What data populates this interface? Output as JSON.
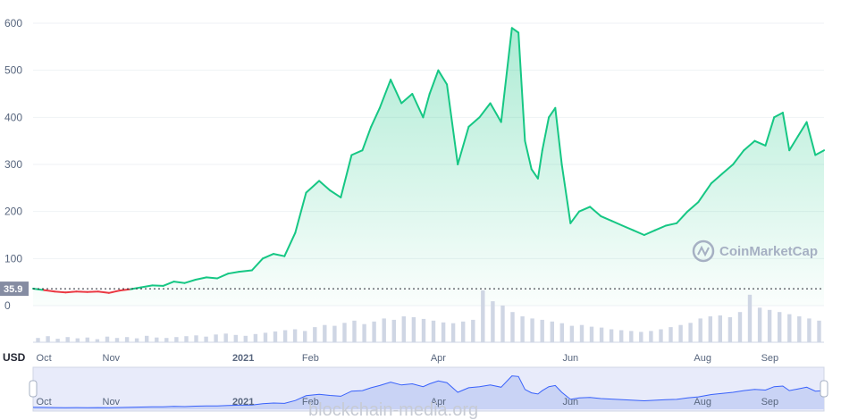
{
  "chart_data": {
    "type": "area",
    "unit_label": "USD",
    "yticks": [
      0,
      100,
      200,
      300,
      400,
      500,
      600
    ],
    "ylim": [
      0,
      620
    ],
    "baseline_label": "35.9",
    "baseline_value": 35.9,
    "x_start": "2020-09-26",
    "x_end": "2021-09-26",
    "x_ticks": [
      {
        "label": "Oct",
        "date": "2020-10-01",
        "year": false
      },
      {
        "label": "Nov",
        "date": "2020-11-01",
        "year": false
      },
      {
        "label": "2021",
        "date": "2021-01-01",
        "year": true
      },
      {
        "label": "Feb",
        "date": "2021-02-01",
        "year": false
      },
      {
        "label": "Apr",
        "date": "2021-04-01",
        "year": false
      },
      {
        "label": "Jun",
        "date": "2021-06-01",
        "year": false
      },
      {
        "label": "Aug",
        "date": "2021-08-01",
        "year": false
      },
      {
        "label": "Sep",
        "date": "2021-09-01",
        "year": false
      }
    ],
    "series": [
      {
        "color_up": "#16c784",
        "color_down": "#ea3943",
        "x": [
          "2020-09-26",
          "2020-10-01",
          "2020-10-06",
          "2020-10-11",
          "2020-10-16",
          "2020-10-21",
          "2020-10-26",
          "2020-10-31",
          "2020-11-05",
          "2020-11-10",
          "2020-11-15",
          "2020-11-20",
          "2020-11-25",
          "2020-11-30",
          "2020-12-05",
          "2020-12-10",
          "2020-12-15",
          "2020-12-20",
          "2020-12-25",
          "2020-12-30",
          "2021-01-05",
          "2021-01-10",
          "2021-01-15",
          "2021-01-20",
          "2021-01-25",
          "2021-01-30",
          "2021-02-05",
          "2021-02-10",
          "2021-02-15",
          "2021-02-20",
          "2021-02-25",
          "2021-03-01",
          "2021-03-05",
          "2021-03-10",
          "2021-03-15",
          "2021-03-20",
          "2021-03-25",
          "2021-03-28",
          "2021-04-01",
          "2021-04-05",
          "2021-04-10",
          "2021-04-15",
          "2021-04-20",
          "2021-04-25",
          "2021-04-30",
          "2021-05-05",
          "2021-05-08",
          "2021-05-11",
          "2021-05-14",
          "2021-05-17",
          "2021-05-19",
          "2021-05-22",
          "2021-05-25",
          "2021-05-28",
          "2021-06-01",
          "2021-06-05",
          "2021-06-10",
          "2021-06-15",
          "2021-06-20",
          "2021-06-25",
          "2021-06-30",
          "2021-07-05",
          "2021-07-10",
          "2021-07-15",
          "2021-07-20",
          "2021-07-25",
          "2021-07-30",
          "2021-08-05",
          "2021-08-10",
          "2021-08-15",
          "2021-08-20",
          "2021-08-25",
          "2021-08-30",
          "2021-09-03",
          "2021-09-07",
          "2021-09-10",
          "2021-09-14",
          "2021-09-18",
          "2021-09-22",
          "2021-09-26"
        ],
        "values": [
          36,
          33,
          30,
          28,
          30,
          29,
          30,
          27,
          32,
          35,
          39,
          43,
          42,
          51,
          48,
          55,
          60,
          58,
          68,
          72,
          75,
          100,
          110,
          105,
          155,
          240,
          265,
          245,
          230,
          320,
          330,
          380,
          420,
          480,
          430,
          450,
          400,
          450,
          500,
          470,
          300,
          380,
          400,
          430,
          390,
          590,
          580,
          350,
          290,
          270,
          330,
          400,
          420,
          300,
          175,
          200,
          210,
          190,
          180,
          170,
          160,
          150,
          160,
          170,
          175,
          200,
          220,
          260,
          280,
          300,
          330,
          350,
          340,
          400,
          410,
          330,
          360,
          390,
          320,
          330
        ]
      }
    ],
    "volume": [
      10,
      14,
      8,
      12,
      9,
      11,
      7,
      13,
      10,
      12,
      9,
      15,
      11,
      10,
      12,
      14,
      16,
      13,
      18,
      20,
      17,
      15,
      19,
      22,
      25,
      28,
      30,
      26,
      35,
      40,
      38,
      45,
      50,
      42,
      48,
      55,
      52,
      60,
      58,
      54,
      50,
      46,
      44,
      48,
      52,
      120,
      95,
      85,
      70,
      60,
      55,
      52,
      48,
      44,
      38,
      40,
      36,
      34,
      30,
      28,
      26,
      24,
      26,
      30,
      35,
      40,
      45,
      55,
      60,
      62,
      58,
      70,
      110,
      80,
      75,
      70,
      65,
      60,
      55,
      50
    ],
    "navigator_labels": [
      {
        "label": "Oct",
        "date": "2020-10-01",
        "year": false
      },
      {
        "label": "Nov",
        "date": "2020-11-01",
        "year": false
      },
      {
        "label": "2021",
        "date": "2021-01-01",
        "year": true
      },
      {
        "label": "Feb",
        "date": "2021-02-01",
        "year": false
      },
      {
        "label": "Apr",
        "date": "2021-04-01",
        "year": false
      },
      {
        "label": "Jun",
        "date": "2021-06-01",
        "year": false
      },
      {
        "label": "Aug",
        "date": "2021-08-01",
        "year": false
      },
      {
        "label": "Sep",
        "date": "2021-09-01",
        "year": false
      }
    ]
  },
  "watermark": "CoinMarketCap",
  "credit": "blockchain-media.org"
}
